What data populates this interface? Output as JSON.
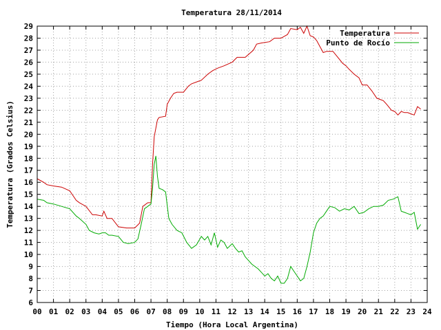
{
  "chart_data": {
    "type": "line",
    "title": "Temperatura 28/11/2014",
    "xlabel": "Tiempo (Hora Local Argentina)",
    "ylabel": "Temperatura (Grados Celsius)",
    "xlim": [
      0,
      24
    ],
    "ylim": [
      6,
      29
    ],
    "x_ticks": [
      "00",
      "01",
      "02",
      "03",
      "04",
      "05",
      "06",
      "07",
      "08",
      "09",
      "10",
      "11",
      "12",
      "13",
      "14",
      "15",
      "16",
      "17",
      "18",
      "19",
      "20",
      "21",
      "22",
      "23",
      "24"
    ],
    "y_ticks": [
      "6",
      "7",
      "8",
      "9",
      "10",
      "11",
      "12",
      "13",
      "14",
      "15",
      "16",
      "17",
      "18",
      "19",
      "20",
      "21",
      "22",
      "23",
      "24",
      "25",
      "26",
      "27",
      "28",
      "29"
    ],
    "grid": true,
    "legend_position": "top-right",
    "series": [
      {
        "name": "Temperatura",
        "color": "#cc0000",
        "x": [
          0,
          0.4,
          0.6,
          1.0,
          1.5,
          2.0,
          2.4,
          2.6,
          3.0,
          3.4,
          3.6,
          4.0,
          4.1,
          4.3,
          4.6,
          5.0,
          5.5,
          6.0,
          6.3,
          6.5,
          6.8,
          7.0,
          7.1,
          7.2,
          7.4,
          7.5,
          7.9,
          8.0,
          8.2,
          8.4,
          8.6,
          9.0,
          9.3,
          9.5,
          9.9,
          10.1,
          10.5,
          10.8,
          11.1,
          11.5,
          12.0,
          12.3,
          12.8,
          13.3,
          13.5,
          13.8,
          14.3,
          14.6,
          15.0,
          15.4,
          15.6,
          16.0,
          16.2,
          16.4,
          16.6,
          16.8,
          17.0,
          17.2,
          17.4,
          17.6,
          17.8,
          18.2,
          18.5,
          18.8,
          19.0,
          19.2,
          19.5,
          19.8,
          20.0,
          20.3,
          20.6,
          20.9,
          21.1,
          21.3,
          21.5,
          21.8,
          22.0,
          22.2,
          22.4,
          22.6,
          22.8,
          23.0,
          23.2,
          23.4,
          23.6
        ],
        "y": [
          16.3,
          16.0,
          15.8,
          15.7,
          15.6,
          15.3,
          14.5,
          14.3,
          14.0,
          13.3,
          13.3,
          13.2,
          13.6,
          13.0,
          13.0,
          12.3,
          12.2,
          12.2,
          12.6,
          14.0,
          14.3,
          14.3,
          17.5,
          19.8,
          21.2,
          21.4,
          21.5,
          22.5,
          23.0,
          23.4,
          23.5,
          23.5,
          24.0,
          24.2,
          24.4,
          24.5,
          25.0,
          25.3,
          25.5,
          25.7,
          26.0,
          26.4,
          26.4,
          27.0,
          27.5,
          27.6,
          27.7,
          28.0,
          28.0,
          28.3,
          28.8,
          28.7,
          28.9,
          28.4,
          29.0,
          28.2,
          28.1,
          27.8,
          27.3,
          26.8,
          26.9,
          26.9,
          26.4,
          25.9,
          25.7,
          25.4,
          25.0,
          24.7,
          24.1,
          24.1,
          23.6,
          23.0,
          22.9,
          22.8,
          22.5,
          22.0,
          21.9,
          21.6,
          21.9,
          21.8,
          21.8,
          21.7,
          21.6,
          22.3,
          22.1
        ]
      },
      {
        "name": "Punto de Rocío",
        "color": "#00aa00",
        "x": [
          0,
          0.4,
          0.6,
          1.0,
          1.5,
          2.0,
          2.4,
          2.6,
          3.0,
          3.2,
          3.5,
          3.8,
          4.0,
          4.2,
          4.4,
          4.6,
          5.0,
          5.3,
          5.6,
          6.0,
          6.2,
          6.4,
          6.6,
          6.8,
          7.0,
          7.1,
          7.2,
          7.3,
          7.4,
          7.5,
          7.7,
          7.9,
          8.1,
          8.3,
          8.6,
          8.9,
          9.2,
          9.5,
          9.8,
          10.1,
          10.3,
          10.5,
          10.7,
          10.9,
          11.1,
          11.3,
          11.5,
          11.7,
          12.0,
          12.2,
          12.4,
          12.6,
          12.8,
          13.0,
          13.2,
          13.4,
          13.6,
          13.8,
          14.0,
          14.2,
          14.4,
          14.6,
          14.8,
          15.0,
          15.2,
          15.4,
          15.6,
          15.8,
          16.0,
          16.2,
          16.4,
          16.6,
          16.8,
          17.0,
          17.2,
          17.4,
          17.6,
          17.8,
          18.0,
          18.3,
          18.6,
          18.9,
          19.2,
          19.5,
          19.8,
          20.1,
          20.4,
          20.7,
          21.0,
          21.3,
          21.6,
          21.9,
          22.2,
          22.4,
          22.6,
          22.8,
          23.0,
          23.2,
          23.4,
          23.6
        ],
        "y": [
          14.6,
          14.5,
          14.3,
          14.2,
          14.0,
          13.8,
          13.2,
          13.0,
          12.5,
          12.0,
          11.8,
          11.7,
          11.8,
          11.8,
          11.6,
          11.6,
          11.5,
          11.0,
          10.9,
          11.0,
          11.3,
          12.5,
          13.8,
          14.0,
          14.2,
          15.5,
          17.5,
          18.2,
          16.5,
          15.5,
          15.4,
          15.2,
          13.0,
          12.5,
          12.0,
          11.8,
          11.0,
          10.5,
          10.8,
          11.5,
          11.2,
          11.5,
          10.8,
          11.8,
          10.6,
          11.2,
          11.0,
          10.5,
          10.9,
          10.5,
          10.2,
          10.3,
          9.8,
          9.5,
          9.2,
          9.0,
          8.8,
          8.5,
          8.2,
          8.4,
          8.0,
          7.8,
          8.2,
          7.6,
          7.6,
          8.0,
          9.0,
          8.6,
          8.2,
          7.8,
          8.0,
          9.0,
          10.2,
          11.8,
          12.6,
          13.0,
          13.2,
          13.6,
          14.0,
          13.9,
          13.6,
          13.8,
          13.7,
          14.0,
          13.4,
          13.5,
          13.8,
          14.0,
          14.0,
          14.1,
          14.5,
          14.6,
          14.8,
          13.6,
          13.5,
          13.4,
          13.3,
          13.5,
          12.1,
          12.5
        ]
      }
    ]
  }
}
